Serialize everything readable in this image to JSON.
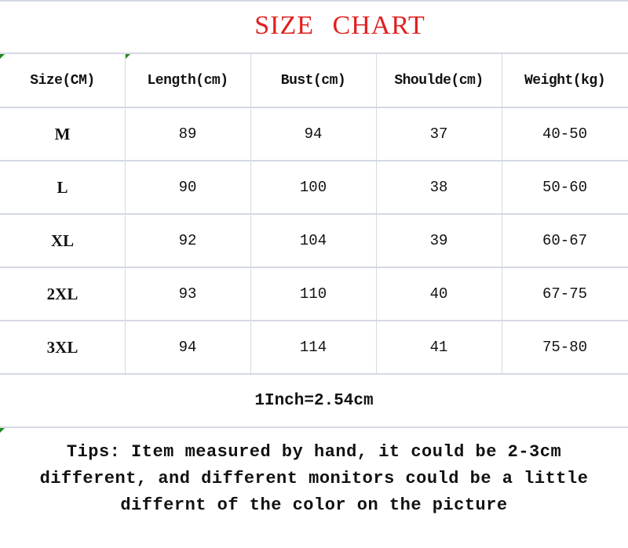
{
  "title": "SIZE CHART",
  "table": {
    "headers": [
      "Size(CM)",
      "Length(cm)",
      "Bust(cm)",
      "Shoulde(cm)",
      "Weight(kg)"
    ],
    "rows": [
      [
        "M",
        "89",
        "94",
        "37",
        "40-50"
      ],
      [
        "L",
        "90",
        "100",
        "38",
        "50-60"
      ],
      [
        "XL",
        "92",
        "104",
        "39",
        "60-67"
      ],
      [
        "2XL",
        "93",
        "110",
        "40",
        "67-75"
      ],
      [
        "3XL",
        "94",
        "114",
        "41",
        "75-80"
      ]
    ]
  },
  "conversion": "1Inch=2.54cm",
  "tips": "Tips: Item measured by hand, it could be 2-3cm different,  and different monitors could be a little differnt of the color on the picture",
  "colors": {
    "title": "#e0201f",
    "grid": "#d4d9e3"
  }
}
